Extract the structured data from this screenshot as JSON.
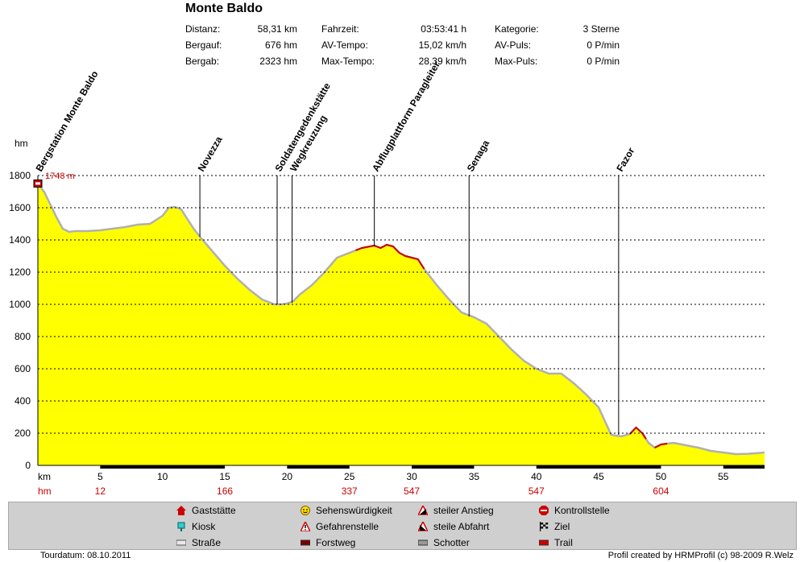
{
  "header": {
    "title": "Monte Baldo",
    "stats": [
      {
        "label": "Distanz:",
        "value": "58,31 km"
      },
      {
        "label": "Bergauf:",
        "value": "676 hm"
      },
      {
        "label": "Bergab:",
        "value": "2323 hm"
      },
      {
        "label": "Fahrzeit:",
        "value": "03:53:41 h"
      },
      {
        "label": "AV-Tempo:",
        "value": "15,02 km/h"
      },
      {
        "label": "Max-Tempo:",
        "value": "28,39 km/h"
      },
      {
        "label": "Kategorie:",
        "value": "3 Sterne"
      },
      {
        "label": "AV-Puls:",
        "value": "0 P/min"
      },
      {
        "label": "Max-Puls:",
        "value": "0 P/min"
      }
    ]
  },
  "chart_data": {
    "type": "area",
    "ylabel": "hm",
    "xlabel": "km",
    "xlim": [
      0,
      58.31
    ],
    "ylim": [
      0,
      1800
    ],
    "yticks": [
      0,
      200,
      400,
      600,
      800,
      1000,
      1200,
      1400,
      1600,
      1800
    ],
    "xticks": [
      5,
      10,
      15,
      20,
      25,
      30,
      35,
      40,
      45,
      50,
      55
    ],
    "grid": "horizontal dotted",
    "fill_color": "#ffff00",
    "line_color": "#b0b0b0",
    "trail_color": "#cc0000",
    "start_label": "1748 m",
    "x": [
      0,
      0.5,
      1,
      1.5,
      2,
      2.5,
      3,
      3.5,
      4,
      5,
      6,
      7,
      8,
      9,
      10,
      10.5,
      11,
      11.5,
      12,
      12.5,
      13,
      14,
      15,
      16,
      17,
      18,
      19,
      19.5,
      20,
      20.5,
      21,
      22,
      23,
      24,
      25,
      26,
      27,
      27.5,
      28,
      28.5,
      29,
      29.5,
      30,
      30.5,
      31,
      32,
      33,
      34,
      35,
      36,
      37,
      38,
      39,
      40,
      41,
      42,
      43,
      44,
      45,
      46,
      46.8,
      47.5,
      48,
      48.5,
      49,
      49.5,
      50,
      51,
      52,
      53,
      54,
      55,
      56,
      57,
      58.31
    ],
    "y": [
      1748,
      1700,
      1620,
      1540,
      1470,
      1450,
      1455,
      1455,
      1455,
      1460,
      1470,
      1480,
      1495,
      1500,
      1550,
      1600,
      1605,
      1590,
      1530,
      1470,
      1420,
      1330,
      1240,
      1160,
      1090,
      1030,
      1000,
      1000,
      1005,
      1020,
      1060,
      1120,
      1200,
      1290,
      1320,
      1350,
      1365,
      1350,
      1370,
      1360,
      1320,
      1300,
      1290,
      1280,
      1220,
      1120,
      1030,
      950,
      920,
      880,
      800,
      720,
      650,
      600,
      570,
      570,
      510,
      440,
      360,
      190,
      180,
      195,
      235,
      200,
      140,
      110,
      130,
      140,
      125,
      110,
      90,
      80,
      70,
      72,
      80
    ],
    "trail_segments": [
      [
        25.5,
        31
      ],
      [
        47.5,
        48.8
      ],
      [
        49.5,
        50.5
      ]
    ],
    "black_bands_x": [
      [
        5,
        15
      ],
      [
        20,
        25
      ],
      [
        30,
        35
      ],
      [
        40,
        50
      ],
      [
        55,
        58.31
      ]
    ],
    "hm_row_label": "hm",
    "hm_row": [
      {
        "km": 5,
        "value": "12"
      },
      {
        "km": 15,
        "value": "166"
      },
      {
        "km": 25,
        "value": "337"
      },
      {
        "km": 30,
        "value": "547"
      },
      {
        "km": 40,
        "value": "547"
      },
      {
        "km": 50,
        "value": "604"
      }
    ],
    "waypoints": [
      {
        "km": 0,
        "name": "Bergstation Monte Baldo",
        "elev": 1748
      },
      {
        "km": 13,
        "name": "Novezza",
        "elev": 1420
      },
      {
        "km": 19.2,
        "name": "Soldatengedenkstätte",
        "elev": 1000
      },
      {
        "km": 20.4,
        "name": "Wegkreuzung",
        "elev": 1010
      },
      {
        "km": 27,
        "name": "Abflugplattform Paragleiter",
        "elev": 1360
      },
      {
        "km": 34.6,
        "name": "Senaga",
        "elev": 925
      },
      {
        "km": 46.6,
        "name": "Fazor",
        "elev": 190
      }
    ]
  },
  "legend": {
    "items": [
      {
        "label": "Gaststätte",
        "icon": "restaurant-icon"
      },
      {
        "label": "Kiosk",
        "icon": "kiosk-icon"
      },
      {
        "label": "Straße",
        "icon": "road-icon"
      },
      {
        "label": "Sehenswürdigkeit",
        "icon": "smiley-icon"
      },
      {
        "label": "Gefahrenstelle",
        "icon": "warning-icon"
      },
      {
        "label": "Forstweg",
        "icon": "forest-road-icon"
      },
      {
        "label": "steiler Anstieg",
        "icon": "steep-climb-icon"
      },
      {
        "label": "steile Abfahrt",
        "icon": "steep-descent-icon"
      },
      {
        "label": "Schotter",
        "icon": "gravel-icon"
      },
      {
        "label": "Kontrollstelle",
        "icon": "stop-icon"
      },
      {
        "label": "Ziel",
        "icon": "finish-flag-icon"
      },
      {
        "label": "Trail",
        "icon": "trail-icon"
      }
    ]
  },
  "footer": {
    "date": "Tourdatum: 08.10.2011",
    "credit": "Profil created by HRMProfil (c) 98-2009 R.Welz"
  }
}
